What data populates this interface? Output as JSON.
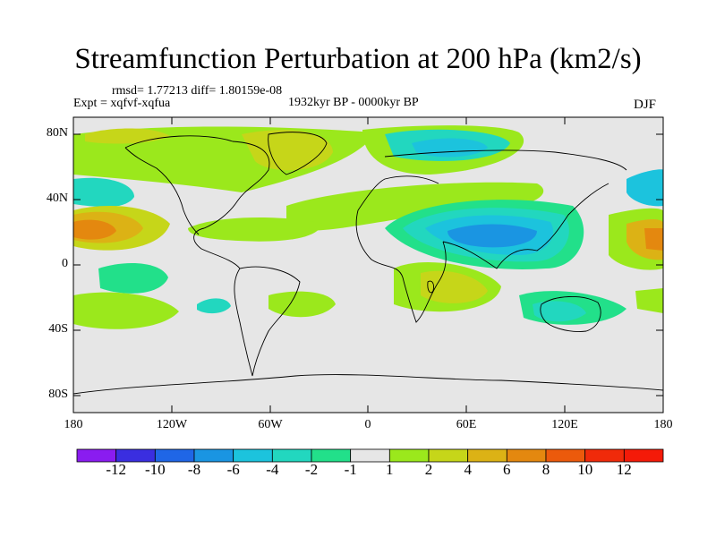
{
  "title": "Streamfunction Perturbation at 200 hPa (km2/s)",
  "stats": "rmsd= 1.77213 diff= 1.80159e-08",
  "expt": "Expt = xqfvf-xqfua",
  "period": "1932kyr BP - 0000kyr BP",
  "season": "DJF",
  "lat_labels": [
    "80N",
    "40N",
    "0",
    "40S",
    "80S"
  ],
  "lon_labels": [
    "180",
    "120W",
    "60W",
    "0",
    "60E",
    "120E",
    "180"
  ],
  "colorbar": {
    "labels": [
      "-12",
      "-10",
      "-8",
      "-6",
      "-4",
      "-2",
      "-1",
      "1",
      "2",
      "4",
      "6",
      "8",
      "10",
      "12"
    ],
    "colors": [
      "#8a1cf0",
      "#3a2ee0",
      "#1f66e6",
      "#1a95e2",
      "#1cc3dd",
      "#22d7bf",
      "#22e08a",
      "#e6e6e6",
      "#9be81c",
      "#c6d619",
      "#dcb215",
      "#e4880f",
      "#ec5a0c",
      "#f02a0a",
      "#f41a08"
    ]
  },
  "map_colors": {
    "background": "#e6e6e6",
    "coast": "#000000"
  }
}
